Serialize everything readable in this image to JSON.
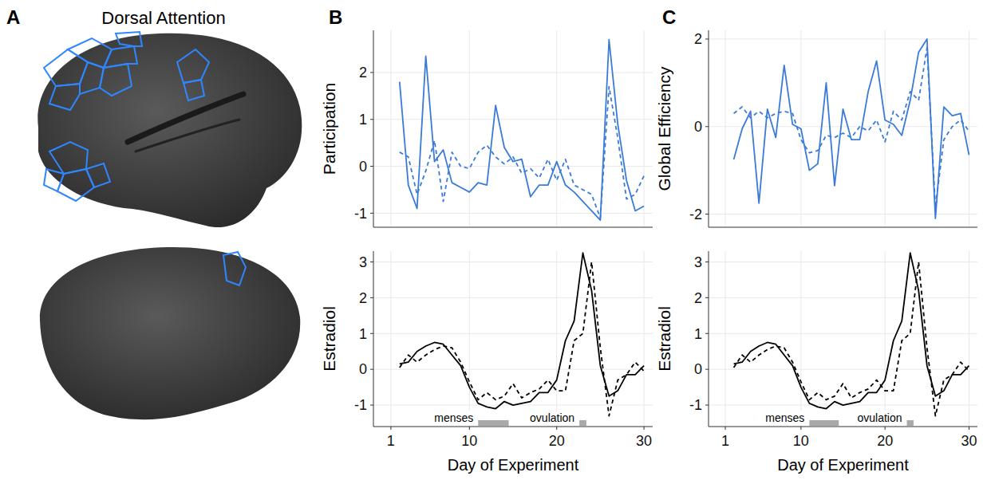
{
  "panel_labels": [
    "A",
    "B",
    "C"
  ],
  "panel_a": {
    "title": "Dorsal Attention"
  },
  "chart_data": [
    {
      "type": "line",
      "ylabel": "Participation",
      "x": [
        2,
        3,
        4,
        5,
        6,
        7,
        8,
        9,
        10,
        11,
        12,
        13,
        14,
        15,
        16,
        17,
        18,
        19,
        20,
        21,
        22,
        23,
        24,
        25,
        26,
        27,
        28,
        29,
        30
      ],
      "xlim": [
        -1,
        31
      ],
      "xticks": [
        1,
        10,
        20,
        30
      ],
      "ylim": [
        -1.3,
        2.9
      ],
      "yticks": [
        -1,
        0,
        1,
        2
      ],
      "grid": true,
      "tick_labels": "y",
      "series": [
        {
          "color": "#3b7bd8",
          "line_style": "solid",
          "values": [
            1.8,
            -0.4,
            -0.9,
            2.35,
            0.1,
            0.35,
            -0.35,
            -0.45,
            -0.55,
            -0.35,
            -0.4,
            1.3,
            0.4,
            0.1,
            0.15,
            -0.65,
            -0.4,
            -0.4,
            0.1,
            -0.4,
            -0.55,
            -0.75,
            -0.95,
            -1.15,
            2.7,
            0.9,
            -0.3,
            -0.95,
            -0.85
          ]
        },
        {
          "color": "#3b7bd8",
          "line_style": "dashed",
          "values": [
            0.3,
            0.2,
            -0.6,
            -0.1,
            0.55,
            -0.75,
            0.3,
            0,
            -0.05,
            0.3,
            0.45,
            0.2,
            0.05,
            0.2,
            -0.15,
            -0.05,
            -0.25,
            0.15,
            -0.3,
            0.15,
            -0.4,
            -0.5,
            -0.6,
            -1.1,
            1.7,
            0.6,
            -0.7,
            -0.6,
            -0.2
          ]
        }
      ]
    },
    {
      "type": "line",
      "ylabel": "Estradiol",
      "xlabel": "Day of Experiment",
      "x": [
        2,
        3,
        4,
        5,
        6,
        7,
        8,
        9,
        10,
        11,
        12,
        13,
        14,
        15,
        16,
        17,
        18,
        19,
        20,
        21,
        22,
        23,
        24,
        25,
        26,
        27,
        28,
        29,
        30
      ],
      "xlim": [
        -1,
        31
      ],
      "xticks": [
        1,
        10,
        20,
        30
      ],
      "ylim": [
        -1.6,
        3.3
      ],
      "yticks": [
        -1,
        0,
        1,
        2,
        3
      ],
      "grid": true,
      "tick_labels": true,
      "series": [
        {
          "color": "#000000",
          "line_style": "solid",
          "values": [
            0.15,
            0.2,
            0.5,
            0.65,
            0.75,
            0.7,
            0.4,
            0.1,
            -0.5,
            -0.95,
            -1.05,
            -1.1,
            -0.9,
            -1.0,
            -0.95,
            -0.9,
            -0.65,
            -0.65,
            -0.3,
            0.8,
            1.35,
            3.25,
            2.2,
            0.1,
            -0.75,
            -0.6,
            -0.15,
            -0.15,
            0.1
          ]
        },
        {
          "color": "#000000",
          "line_style": "dashed",
          "values": [
            0.05,
            0.4,
            0.2,
            0.4,
            0.55,
            0.65,
            0.6,
            0.2,
            -0.35,
            -0.85,
            -0.65,
            -0.85,
            -0.75,
            -0.4,
            -0.8,
            -0.65,
            -0.55,
            -0.3,
            -0.6,
            -0.6,
            0.8,
            1.0,
            3.0,
            0.6,
            -1.3,
            -0.3,
            -0.15,
            0.2,
            -0.05
          ]
        }
      ],
      "annotations": [
        {
          "text": "menses",
          "x0": 11,
          "x1": 14.5
        },
        {
          "text": "ovulation",
          "x0": 22.6,
          "x1": 23.4
        }
      ]
    },
    {
      "type": "line",
      "ylabel": "Global Efficiency",
      "x": [
        2,
        3,
        4,
        5,
        6,
        7,
        8,
        9,
        10,
        11,
        12,
        13,
        14,
        15,
        16,
        17,
        18,
        19,
        20,
        21,
        22,
        23,
        24,
        25,
        26,
        27,
        28,
        29,
        30
      ],
      "xlim": [
        -1,
        31
      ],
      "xticks": [
        1,
        10,
        20,
        30
      ],
      "ylim": [
        -2.3,
        2.2
      ],
      "yticks": [
        -2,
        0,
        2
      ],
      "grid": true,
      "tick_labels": "y",
      "series": [
        {
          "color": "#3b7bd8",
          "line_style": "solid",
          "values": [
            -0.75,
            -0.05,
            0.35,
            -1.75,
            0.4,
            -0.25,
            1.4,
            0.05,
            -0.05,
            -1.0,
            -0.85,
            1.0,
            -1.35,
            0.4,
            -0.3,
            -0.3,
            0.8,
            1.5,
            0.15,
            0.05,
            -0.2,
            0.6,
            1.7,
            2.0,
            -2.1,
            0.45,
            0.25,
            0.3,
            -0.65
          ]
        },
        {
          "color": "#3b7bd8",
          "line_style": "dashed",
          "values": [
            0.3,
            0.45,
            0.2,
            0.35,
            0.2,
            0.3,
            0.35,
            0.3,
            -0.3,
            -0.6,
            -0.55,
            -0.2,
            -0.25,
            -0.15,
            -0.25,
            0,
            -0.1,
            0.15,
            -0.35,
            0.35,
            0.15,
            0.8,
            0.6,
            1.8,
            -1.85,
            -0.3,
            0,
            0.15,
            -0.1
          ]
        }
      ]
    },
    {
      "type": "line",
      "ylabel": "Estradiol",
      "xlabel": "Day of Experiment",
      "x": [
        2,
        3,
        4,
        5,
        6,
        7,
        8,
        9,
        10,
        11,
        12,
        13,
        14,
        15,
        16,
        17,
        18,
        19,
        20,
        21,
        22,
        23,
        24,
        25,
        26,
        27,
        28,
        29,
        30
      ],
      "xlim": [
        -1,
        31
      ],
      "xticks": [
        1,
        10,
        20,
        30
      ],
      "ylim": [
        -1.6,
        3.3
      ],
      "yticks": [
        -1,
        0,
        1,
        2,
        3
      ],
      "grid": true,
      "tick_labels": true,
      "series": [
        {
          "color": "#000000",
          "line_style": "solid",
          "values": [
            0.15,
            0.2,
            0.5,
            0.65,
            0.75,
            0.7,
            0.4,
            0.1,
            -0.5,
            -0.95,
            -1.05,
            -1.1,
            -0.9,
            -1.0,
            -0.95,
            -0.9,
            -0.65,
            -0.65,
            -0.3,
            0.8,
            1.35,
            3.25,
            2.2,
            0.1,
            -0.75,
            -0.6,
            -0.15,
            -0.15,
            0.1
          ]
        },
        {
          "color": "#000000",
          "line_style": "dashed",
          "values": [
            0.05,
            0.4,
            0.2,
            0.4,
            0.55,
            0.65,
            0.6,
            0.2,
            -0.35,
            -0.85,
            -0.65,
            -0.85,
            -0.75,
            -0.4,
            -0.8,
            -0.65,
            -0.55,
            -0.3,
            -0.6,
            -0.6,
            0.8,
            1.0,
            3.0,
            0.6,
            -1.3,
            -0.3,
            -0.15,
            0.2,
            -0.05
          ]
        }
      ],
      "annotations": [
        {
          "text": "menses",
          "x0": 11,
          "x1": 14.5
        },
        {
          "text": "ovulation",
          "x0": 22.6,
          "x1": 23.4
        }
      ]
    }
  ]
}
